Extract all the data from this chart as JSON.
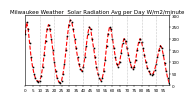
{
  "title": "Milwaukee Weather  Solar Radiation Avg per Day W/m2/minute",
  "title_fontsize": 4.0,
  "line_color": "#ff0000",
  "line_style": "--",
  "line_width": 0.8,
  "marker": "s",
  "marker_size": 0.8,
  "marker_color": "#000000",
  "background_color": "#ffffff",
  "plot_bg_color": "#ffffff",
  "grid_color": "#999999",
  "grid_style": ":",
  "ylim": [
    0,
    300
  ],
  "yticks": [
    0,
    50,
    100,
    150,
    200,
    250,
    300
  ],
  "ylabel_fontsize": 3.0,
  "xlabel_fontsize": 3.0,
  "tick_fontsize": 3.0,
  "values": [
    220,
    270,
    240,
    180,
    120,
    80,
    50,
    30,
    20,
    15,
    20,
    40,
    80,
    130,
    190,
    240,
    260,
    240,
    200,
    150,
    100,
    60,
    30,
    15,
    10,
    20,
    50,
    90,
    150,
    210,
    260,
    280,
    270,
    240,
    200,
    160,
    120,
    90,
    70,
    60,
    80,
    120,
    170,
    220,
    250,
    240,
    200,
    160,
    120,
    80,
    50,
    30,
    20,
    30,
    60,
    110,
    170,
    220,
    250,
    240,
    200,
    160,
    120,
    90,
    80,
    100,
    140,
    180,
    200,
    190,
    160,
    130,
    100,
    80,
    70,
    80,
    110,
    150,
    185,
    200,
    185,
    160,
    130,
    100,
    75,
    60,
    50,
    45,
    50,
    65,
    90,
    120,
    150,
    170,
    160,
    130,
    95,
    60,
    30,
    10
  ],
  "grid_positions": [
    10,
    20,
    30,
    40,
    50,
    60,
    70,
    80,
    90
  ]
}
